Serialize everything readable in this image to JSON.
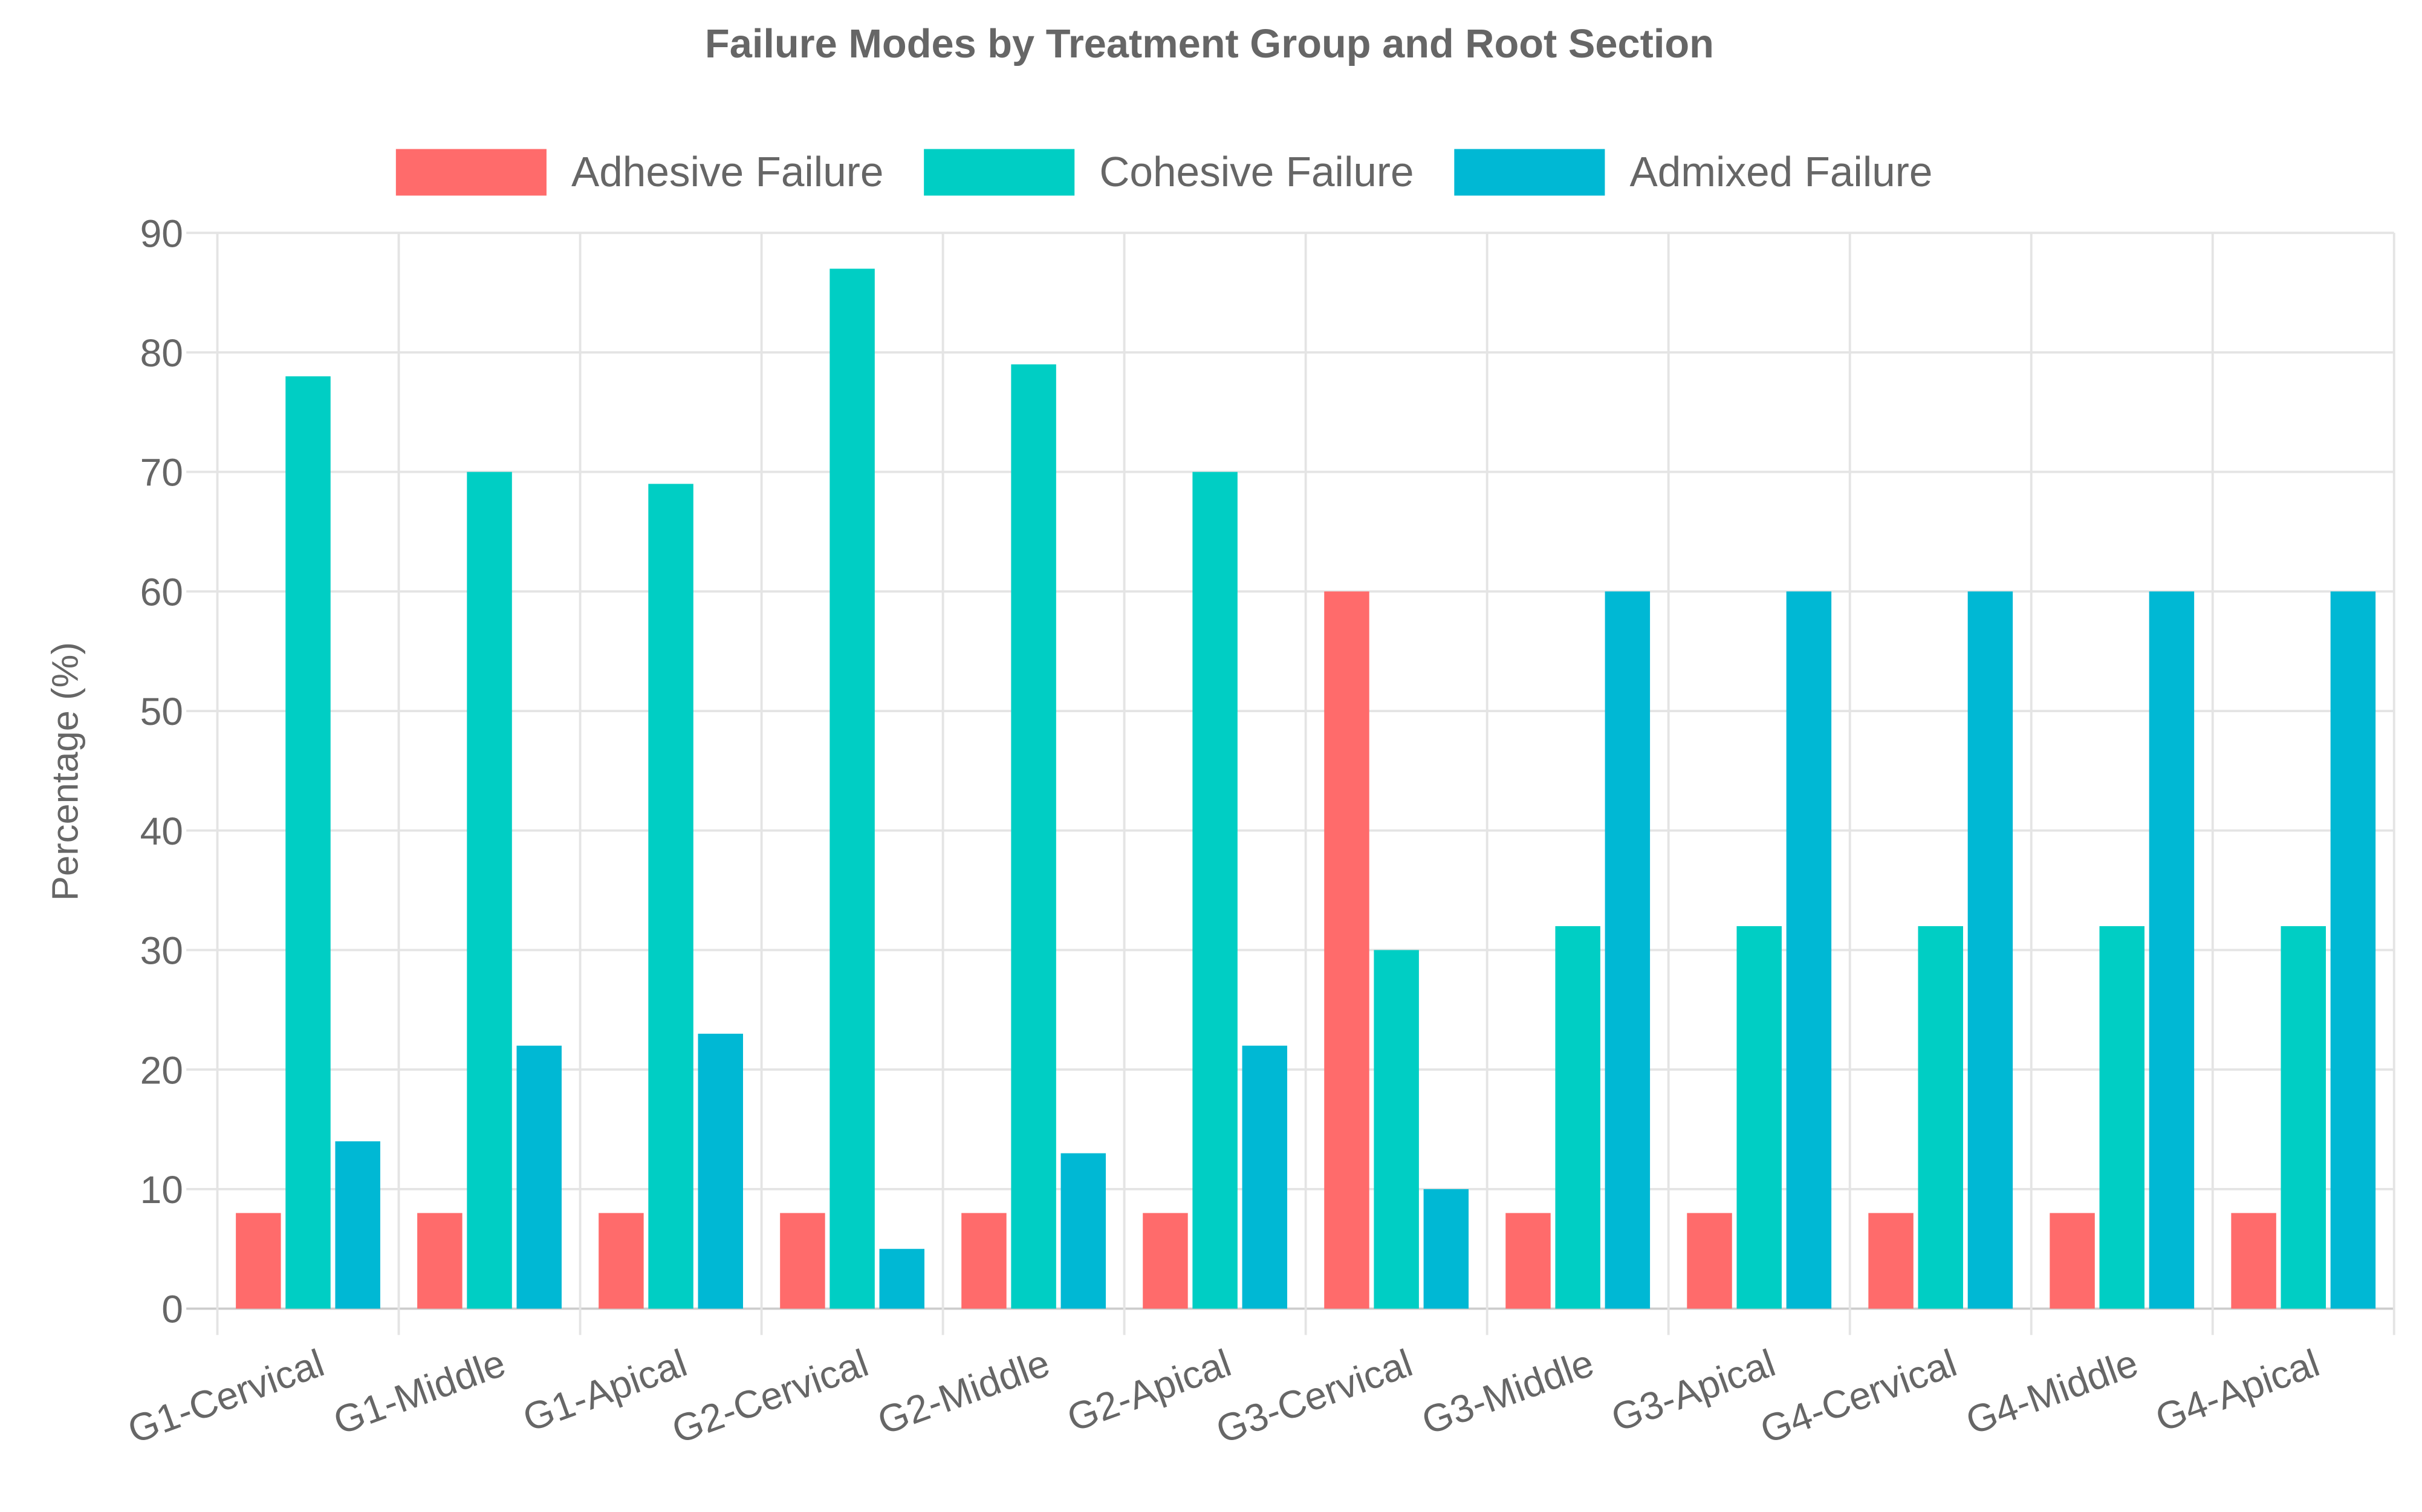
{
  "chart_data": {
    "type": "bar",
    "title": "Failure Modes by Treatment Group and Root Section",
    "xlabel": "",
    "ylabel": "Percentage (%)",
    "ylim": [
      0,
      90
    ],
    "yticks": [
      0,
      10,
      20,
      30,
      40,
      50,
      60,
      70,
      80,
      90
    ],
    "grid": true,
    "legend_position": "top",
    "categories": [
      "G1-Cervical",
      "G1-Middle",
      "G1-Apical",
      "G2-Cervical",
      "G2-Middle",
      "G2-Apical",
      "G3-Cervical",
      "G3-Middle",
      "G3-Apical",
      "G4-Cervical",
      "G4-Middle",
      "G4-Apical"
    ],
    "series": [
      {
        "name": "Adhesive Failure",
        "color": "#FF6B6B",
        "values": [
          8,
          8,
          8,
          8,
          8,
          8,
          60,
          8,
          8,
          8,
          8,
          8
        ]
      },
      {
        "name": "Cohesive Failure",
        "color": "#00CEC4",
        "values": [
          78,
          70,
          69,
          87,
          79,
          70,
          30,
          32,
          32,
          32,
          32,
          32
        ]
      },
      {
        "name": "Admixed Failure",
        "color": "#00B8D4",
        "values": [
          14,
          22,
          23,
          5,
          13,
          22,
          10,
          60,
          60,
          60,
          60,
          60
        ]
      }
    ]
  }
}
